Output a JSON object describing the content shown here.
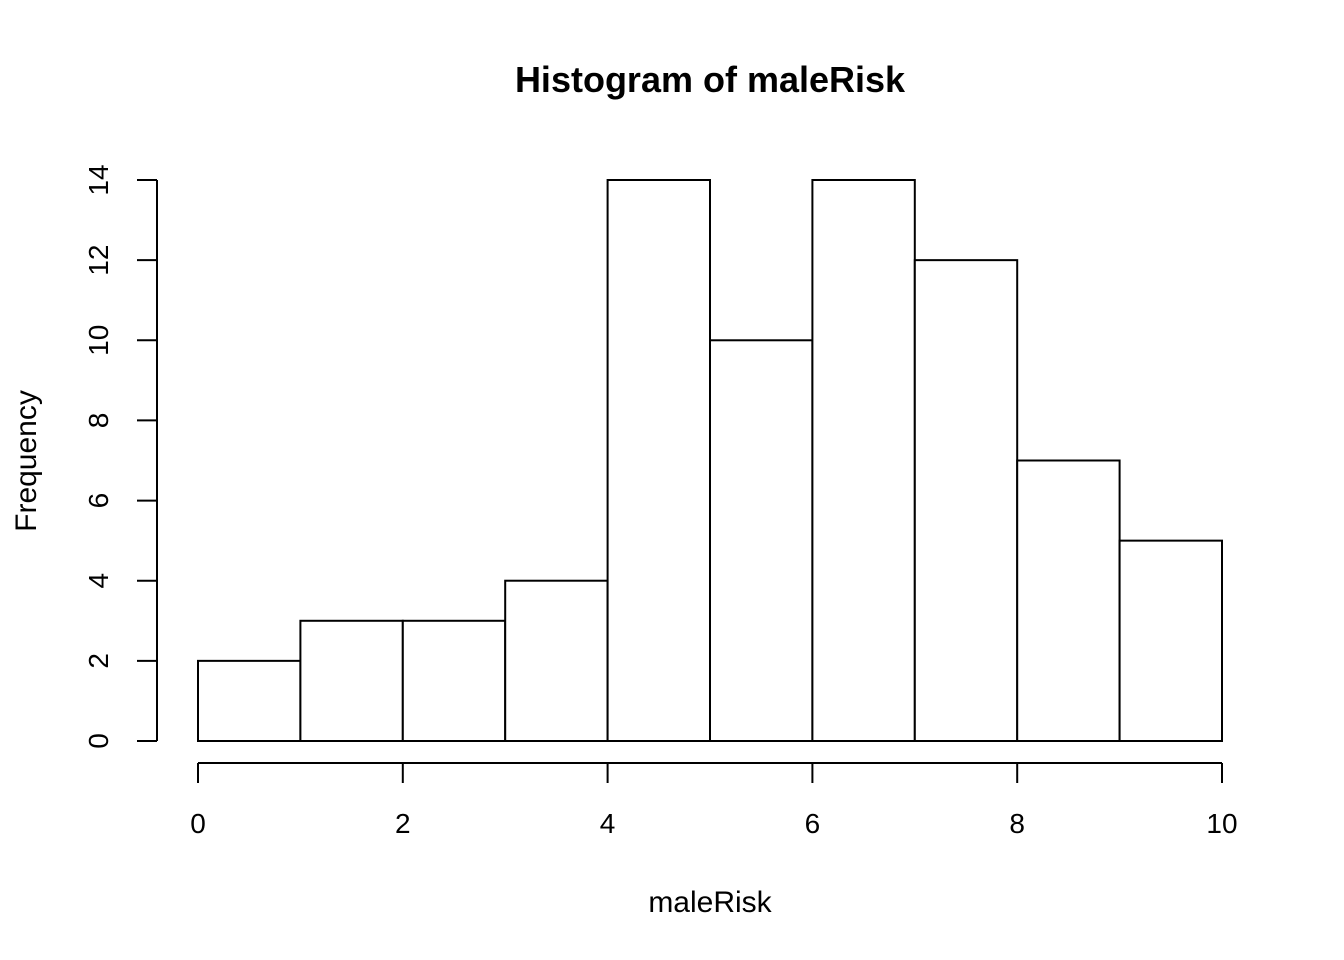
{
  "chart_data": {
    "type": "bar",
    "title": "Histogram of maleRisk",
    "xlabel": "maleRisk",
    "ylabel": "Frequency",
    "bins": [
      {
        "start": 0,
        "end": 1,
        "count": 2
      },
      {
        "start": 1,
        "end": 2,
        "count": 3
      },
      {
        "start": 2,
        "end": 3,
        "count": 3
      },
      {
        "start": 3,
        "end": 4,
        "count": 4
      },
      {
        "start": 4,
        "end": 5,
        "count": 14
      },
      {
        "start": 5,
        "end": 6,
        "count": 10
      },
      {
        "start": 6,
        "end": 7,
        "count": 14
      },
      {
        "start": 7,
        "end": 8,
        "count": 12
      },
      {
        "start": 8,
        "end": 9,
        "count": 7
      },
      {
        "start": 9,
        "end": 10,
        "count": 5
      }
    ],
    "xlim": [
      0,
      10
    ],
    "ylim": [
      0,
      14
    ],
    "xticks": [
      0,
      2,
      4,
      6,
      8,
      10
    ],
    "yticks": [
      0,
      2,
      4,
      6,
      8,
      10,
      12,
      14
    ],
    "grid": false,
    "legend": "none"
  }
}
